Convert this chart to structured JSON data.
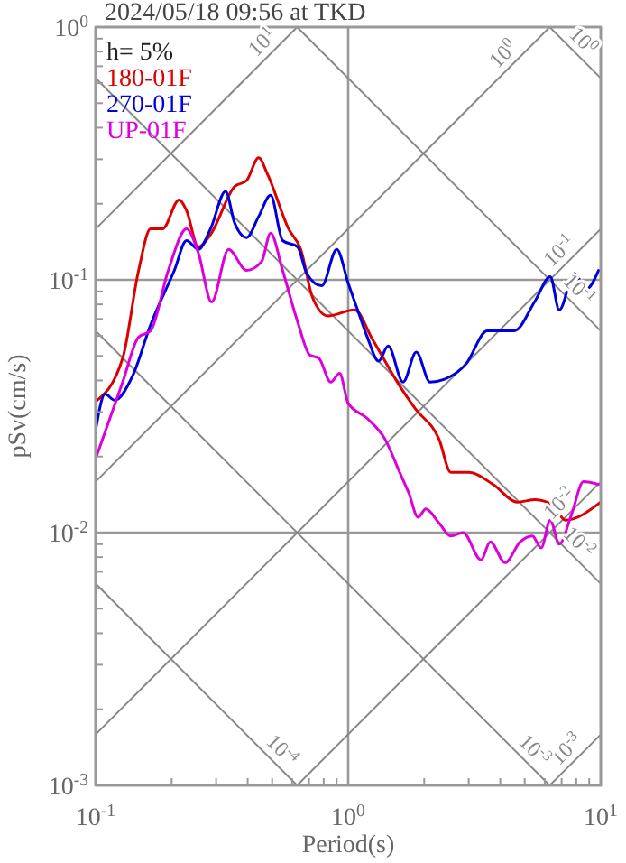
{
  "chart_data": {
    "type": "line",
    "title": "2024/05/18 09:56 at TKD",
    "xlabel": "Period(s)",
    "ylabel": "pSv(cm/s)",
    "legend_title": "h= 5%",
    "legend": "top left",
    "log": "xy",
    "grid": true,
    "marker": "none",
    "xlim": [
      0.1,
      10
    ],
    "ylim": [
      0.001,
      1
    ],
    "xticks": [
      {
        "value": 0.1,
        "label": "10$^{-1}$"
      },
      {
        "value": 0.2,
        "label": null
      },
      {
        "value": 0.3,
        "label": null
      },
      {
        "value": 0.4,
        "label": null
      },
      {
        "value": 0.5,
        "label": null
      },
      {
        "value": 0.6,
        "label": null
      },
      {
        "value": 0.7,
        "label": null
      },
      {
        "value": 0.8,
        "label": null
      },
      {
        "value": 0.9,
        "label": null
      },
      {
        "value": 1,
        "label": "10$^{0}$"
      },
      {
        "value": 2,
        "label": null
      },
      {
        "value": 3,
        "label": null
      },
      {
        "value": 4,
        "label": null
      },
      {
        "value": 5,
        "label": null
      },
      {
        "value": 6,
        "label": null
      },
      {
        "value": 7,
        "label": null
      },
      {
        "value": 8,
        "label": null
      },
      {
        "value": 9,
        "label": null
      },
      {
        "value": 10,
        "label": "10$^{1}$"
      }
    ],
    "yticks": [
      {
        "value": 0.001,
        "label": "10$^{-3}$"
      },
      {
        "value": 0.002,
        "label": null
      },
      {
        "value": 0.003,
        "label": null
      },
      {
        "value": 0.004,
        "label": null
      },
      {
        "value": 0.005,
        "label": null
      },
      {
        "value": 0.006,
        "label": null
      },
      {
        "value": 0.007,
        "label": null
      },
      {
        "value": 0.008,
        "label": null
      },
      {
        "value": 0.009,
        "label": null
      },
      {
        "value": 0.01,
        "label": "10$^{-2}$"
      },
      {
        "value": 0.02,
        "label": null
      },
      {
        "value": 0.03,
        "label": null
      },
      {
        "value": 0.04,
        "label": null
      },
      {
        "value": 0.05,
        "label": null
      },
      {
        "value": 0.06,
        "label": null
      },
      {
        "value": 0.07,
        "label": null
      },
      {
        "value": 0.08,
        "label": null
      },
      {
        "value": 0.09,
        "label": null
      },
      {
        "value": 0.1,
        "label": "10$^{-1}$"
      },
      {
        "value": 0.2,
        "label": null
      },
      {
        "value": 0.3,
        "label": null
      },
      {
        "value": 0.4,
        "label": null
      },
      {
        "value": 0.5,
        "label": null
      },
      {
        "value": 0.6,
        "label": null
      },
      {
        "value": 0.7,
        "label": null
      },
      {
        "value": 0.8,
        "label": null
      },
      {
        "value": 0.9,
        "label": null
      },
      {
        "value": 1,
        "label": "10$^{0}$"
      }
    ],
    "series": [
      {
        "name": "180-01F",
        "color": "#dd0000",
        "x": [
          0.1,
          0.128,
          0.148,
          0.165,
          0.184,
          0.214,
          0.229,
          0.255,
          0.285,
          0.355,
          0.396,
          0.442,
          0.48,
          0.581,
          0.649,
          0.723,
          0.83,
          1.06,
          1.25,
          1.6,
          1.84,
          2.29,
          2.55,
          3.01,
          3.75,
          4.67,
          5.5,
          6.49,
          7.23,
          10
        ],
        "values": [
          0.033,
          0.049,
          0.109,
          0.159,
          0.159,
          0.207,
          0.188,
          0.135,
          0.151,
          0.234,
          0.247,
          0.304,
          0.261,
          0.159,
          0.132,
          0.085,
          0.072,
          0.076,
          0.058,
          0.038,
          0.031,
          0.0234,
          0.0173,
          0.0173,
          0.0155,
          0.0132,
          0.0135,
          0.0128,
          0.0112,
          0.0132
        ]
      },
      {
        "name": "270-01F",
        "color": "#0000dd",
        "x": [
          0.1,
          0.109,
          0.119,
          0.14,
          0.165,
          0.205,
          0.229,
          0.255,
          0.285,
          0.327,
          0.355,
          0.396,
          0.442,
          0.493,
          0.55,
          0.631,
          0.685,
          0.786,
          0.901,
          1.0,
          1.09,
          1.19,
          1.32,
          1.44,
          1.65,
          1.86,
          2.11,
          2.42,
          2.93,
          3.55,
          4.54,
          5.5,
          6.31,
          6.85,
          7.86,
          8.77,
          9.8
        ],
        "values": [
          0.0254,
          0.0353,
          0.0334,
          0.0416,
          0.0663,
          0.109,
          0.143,
          0.132,
          0.159,
          0.224,
          0.168,
          0.147,
          0.178,
          0.216,
          0.143,
          0.135,
          0.106,
          0.0947,
          0.132,
          0.097,
          0.076,
          0.0594,
          0.0477,
          0.0547,
          0.0394,
          0.0518,
          0.0394,
          0.0405,
          0.0465,
          0.0628,
          0.0628,
          0.0826,
          0.103,
          0.076,
          0.106,
          0.092,
          0.109
        ]
      },
      {
        "name": "UP-01F",
        "color": "#dd00dd",
        "x": [
          0.1,
          0.128,
          0.148,
          0.165,
          0.194,
          0.229,
          0.255,
          0.288,
          0.336,
          0.396,
          0.454,
          0.493,
          0.55,
          0.631,
          0.705,
          0.765,
          0.853,
          0.925,
          1.0,
          1.19,
          1.4,
          1.6,
          1.74,
          1.89,
          2.03,
          2.29,
          2.55,
          2.85,
          3.36,
          3.65,
          4.18,
          4.8,
          5.36,
          5.81,
          6.31,
          6.85,
          7.66,
          8.54,
          9.8
        ],
        "values": [
          0.0196,
          0.0394,
          0.0594,
          0.0628,
          0.109,
          0.159,
          0.128,
          0.0817,
          0.132,
          0.109,
          0.118,
          0.153,
          0.109,
          0.0681,
          0.0504,
          0.049,
          0.0394,
          0.0427,
          0.0325,
          0.0283,
          0.0234,
          0.0173,
          0.0143,
          0.0115,
          0.0124,
          0.0109,
          0.0097,
          0.01,
          0.0078,
          0.0092,
          0.0076,
          0.0092,
          0.0097,
          0.0087,
          0.0112,
          0.009,
          0.0118,
          0.0159,
          0.0155
        ]
      },
      {
        "color": "#888888",
        "x": [
          0.1,
          0.628
        ],
        "values": [
          0.159,
          1
        ]
      },
      {
        "color": "#888888",
        "x": [
          0.1,
          6.28
        ],
        "values": [
          0.0159,
          1
        ]
      },
      {
        "color": "#888888",
        "x": [
          0.1,
          10
        ],
        "values": [
          0.00159,
          0.159
        ]
      },
      {
        "color": "#888888",
        "x": [
          0.628,
          10
        ],
        "values": [
          0.001,
          0.0159
        ]
      },
      {
        "color": "#888888",
        "x": [
          6.28,
          10
        ],
        "values": [
          0.001,
          0.00159
        ]
      },
      {
        "color": "#888888",
        "x": [
          6.28,
          10
        ],
        "values": [
          1,
          0.628
        ]
      },
      {
        "color": "#888888",
        "x": [
          0.628,
          10
        ],
        "values": [
          1,
          0.0628
        ]
      },
      {
        "color": "#888888",
        "x": [
          0.1,
          10
        ],
        "values": [
          0.628,
          0.00628
        ]
      },
      {
        "color": "#888888",
        "x": [
          0.1,
          6.28
        ],
        "values": [
          0.0628,
          0.001
        ]
      },
      {
        "color": "#888888",
        "x": [
          0.1,
          0.628
        ],
        "values": [
          0.00628,
          0.001
        ]
      }
    ],
    "annotations": [
      {
        "text": "10$^{1}$",
        "x": 0.5,
        "y": 0.795
      },
      {
        "text": "10$^{0}$",
        "x": 4.5,
        "y": 0.716
      },
      {
        "text": "10$^{-1}$",
        "x": 7.5,
        "y": 0.119
      },
      {
        "text": "10$^{-2}$",
        "x": 7.5,
        "y": 0.0119
      },
      {
        "text": "10$^{-3}$",
        "x": 8,
        "y": 0.00127
      },
      {
        "text": "10$^{0}$",
        "x": 7.8,
        "y": 0.805
      },
      {
        "text": "10$^{-1}$",
        "x": 7.5,
        "y": 0.0838
      },
      {
        "text": "10$^{-2}$",
        "x": 7.5,
        "y": 0.00838
      },
      {
        "text": "10$^{-3}$",
        "x": 5,
        "y": 0.00126
      },
      {
        "text": "10$^{-4}$",
        "x": 0.5,
        "y": 0.00126
      }
    ]
  }
}
